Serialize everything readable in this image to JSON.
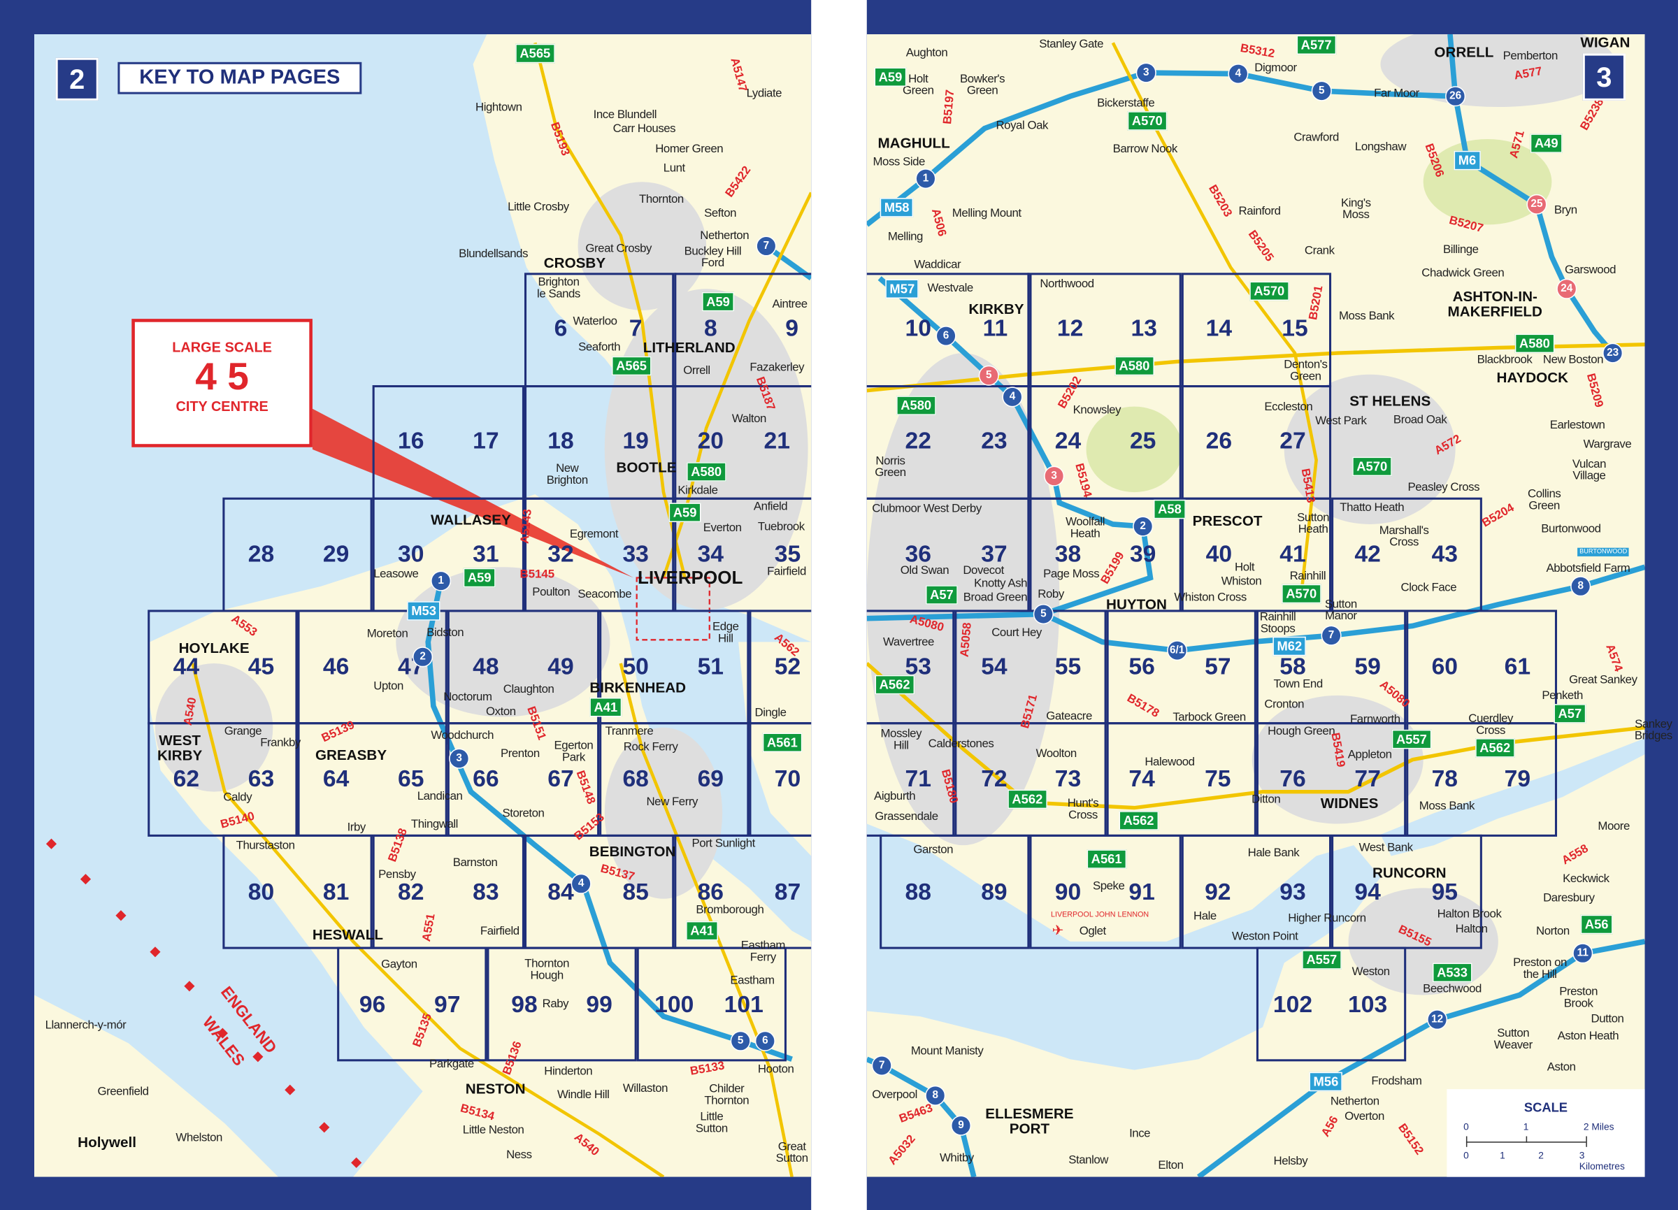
{
  "left_page": {
    "page_number": "2",
    "title": "KEY TO MAP PAGES",
    "large_scale": {
      "line1": "LARGE SCALE",
      "pages": "4 5",
      "line2": "CITY CENTRE"
    },
    "grid_rows": [
      [
        "6",
        "7",
        "8",
        "9"
      ],
      [
        "16",
        "17",
        "18",
        "19",
        "20",
        "21"
      ],
      [
        "28",
        "29",
        "30",
        "31",
        "32",
        "33",
        "34",
        "35"
      ],
      [
        "44",
        "45",
        "46",
        "47",
        "48",
        "49",
        "50",
        "51",
        "52"
      ],
      [
        "62",
        "63",
        "64",
        "65",
        "66",
        "67",
        "68",
        "69",
        "70"
      ],
      [
        "80",
        "81",
        "82",
        "83",
        "84",
        "85",
        "86",
        "87"
      ],
      [
        "96",
        "97",
        "98",
        "99",
        "100",
        "101"
      ]
    ],
    "places": [
      "Hightown",
      "Ince Blundell",
      "Carr Houses",
      "Homer Green",
      "Lunt",
      "Lydiate",
      "Little Crosby",
      "Thornton",
      "Sefton",
      "Netherton",
      "Blundellsands",
      "Great Crosby",
      "Buckley Hill\nFord",
      "CROSBY",
      "Brighton\nle Sands",
      "Waterloo",
      "Seaforth",
      "LITHERLAND",
      "Aintree",
      "Orrell",
      "Fazakerley",
      "Walton",
      "New\nBrighton",
      "BOOTLE",
      "Kirkdale",
      "Anfield",
      "Everton",
      "Tuebrook",
      "WALLASEY",
      "Egremont",
      "Leasowe",
      "LIVERPOOL",
      "Fairfield",
      "Poulton",
      "Seacombe",
      "HOYLAKE",
      "Moreton",
      "Bidston",
      "Upton",
      "Noctorum",
      "Claughton",
      "Oxton",
      "BIRKENHEAD",
      "Edge\nHill",
      "Dingle",
      "Tranmere",
      "Rock Ferry",
      "Egerton\nPark",
      "Prenton",
      "Woodchurch",
      "WEST\nKIRBY",
      "Grange",
      "Frankby",
      "GREASBY",
      "Caldy",
      "Landican",
      "Thingwall",
      "Irby",
      "Storeton",
      "New Ferry",
      "Thurstaston",
      "BEBINGTON",
      "Port Sunlight",
      "Barnston",
      "Pensby",
      "Bromborough",
      "HESWALL",
      "Fairfield",
      "Eastham\nFerry",
      "Gayton",
      "Thornton\nHough",
      "Eastham",
      "Raby",
      "Llannerch-y-mór",
      "Parkgate",
      "Hinderton",
      "Hooton",
      "NESTON",
      "Willaston",
      "Windle Hill",
      "Childer\nThornton",
      "Greenfield",
      "Little Neston",
      "Little\nSutton",
      "Holywell",
      "Whelston",
      "Ness",
      "Great\nSutton"
    ],
    "a_roads": [
      "A565",
      "A59",
      "A565",
      "A580",
      "A59",
      "A59",
      "A41",
      "A561",
      "A41"
    ],
    "motorways": [
      "M53"
    ],
    "b_roads": [
      "B5193",
      "A5147",
      "B5422",
      "B5187",
      "A553",
      "A540",
      "B5139",
      "B5140",
      "B5138",
      "A551",
      "B5145",
      "B5151",
      "B5148",
      "B5153",
      "B5137",
      "B5135",
      "B5136",
      "B5134",
      "B5133",
      "A540",
      "A562",
      "A5143"
    ],
    "junctions": [
      "7",
      "1",
      "2",
      "3",
      "4",
      "5",
      "6"
    ],
    "border_labels": {
      "england": "ENGLAND",
      "wales": "WALES"
    }
  },
  "right_page": {
    "page_number": "3",
    "grid_rows": [
      [
        "10",
        "11",
        "12",
        "13",
        "14",
        "15"
      ],
      [
        "22",
        "23",
        "24",
        "25",
        "26",
        "27"
      ],
      [
        "36",
        "37",
        "38",
        "39",
        "40",
        "41",
        "42",
        "43"
      ],
      [
        "53",
        "54",
        "55",
        "56",
        "57",
        "58",
        "59",
        "60",
        "61"
      ],
      [
        "71",
        "72",
        "73",
        "74",
        "75",
        "76",
        "77",
        "78",
        "79"
      ],
      [
        "88",
        "89",
        "90",
        "91",
        "92",
        "93",
        "94",
        "95"
      ],
      [
        "102",
        "103"
      ]
    ],
    "places": [
      "Aughton",
      "Stanley Gate",
      "Digmoor",
      "ORRELL",
      "Pemberton",
      "WIGAN",
      "Holt\nGreen",
      "Bowker's\nGreen",
      "Bickerstaffe",
      "Royal Oak",
      "Far Moor",
      "MAGHULL",
      "Moss Side",
      "Barrow Nook",
      "Crawford",
      "Longshaw",
      "Melling Mount",
      "Rainford",
      "King's\nMoss",
      "Bryn",
      "Melling",
      "Billinge",
      "Crank",
      "Waddicar",
      "Chadwick Green",
      "Garswood",
      "Westvale",
      "ASHTON-IN-\nMAKERFIELD",
      "KIRKBY",
      "Northwood",
      "Moss Bank",
      "Denton's\nGreen",
      "Blackbrook",
      "New Boston",
      "HAYDOCK",
      "ST HELENS",
      "Knowsley",
      "Eccleston",
      "West Park",
      "Broad Oak",
      "Earlestown",
      "Wargrave",
      "Norris\nGreen",
      "Vulcan\nVillage",
      "Peasley Cross",
      "Collins\nGreen",
      "Thatto Heath",
      "Clubmoor West Derby",
      "Burtonwood",
      "PRESCOT",
      "Sutton\nHeath",
      "Woolfall\nHeath",
      "Marshall's\nCross",
      "Abbotsfield Farm",
      "Holt",
      "Rainhill",
      "Whiston",
      "Whiston Cross",
      "Old Swan",
      "Dovecot",
      "Knotty Ash",
      "Broad Green",
      "Page Moss",
      "Roby",
      "HUYTON",
      "Clock Face",
      "Sutton\nManor",
      "Court Hey",
      "Wavertree",
      "Rainhill\nStoops",
      "Town End",
      "Cronton",
      "Great Sankey",
      "Penketh",
      "Gateacre",
      "Tarbock Green",
      "Farnworth",
      "Cuerdley\nCross",
      "Sankey\nBridges",
      "Mossley\nHill",
      "Calderstones",
      "Hough Green",
      "Woolton",
      "Halewood",
      "Appleton",
      "Aigburth",
      "Hunt's\nCross",
      "Ditton",
      "WIDNES",
      "Moss Bank",
      "Grassendale",
      "Moore",
      "Garston",
      "West Bank",
      "Hale Bank",
      "RUNCORN",
      "Keckwick",
      "Speke",
      "Daresbury",
      "Hale",
      "Higher Runcorn",
      "Halton Brook",
      "Halton",
      "Oglet",
      "Norton",
      "Weston Point",
      "Weston",
      "Preston on\nthe Hill",
      "Beechwood",
      "Preston\nBrook",
      "Sutton\nWeaver",
      "Dutton",
      "Aston Heath",
      "Aston",
      "Mount Manisty",
      "Frodsham",
      "Overpool",
      "Netherton",
      "Overton",
      "ELLESMERE\nPORT",
      "Ince",
      "Helsby",
      "Stanlow",
      "Elton",
      "Whitby"
    ],
    "a_roads": [
      "A59",
      "A577",
      "A570",
      "A49",
      "A570",
      "A580",
      "A580",
      "A580",
      "A570",
      "A58",
      "A57",
      "A570",
      "A562",
      "A57",
      "A557",
      "A562",
      "A562",
      "A562",
      "A561",
      "A56",
      "A557",
      "A533"
    ],
    "motorways": [
      "M58",
      "M57",
      "M6",
      "M62",
      "M56"
    ],
    "b_roads": [
      "B5312",
      "B5197",
      "A506",
      "B5203",
      "B5205",
      "B5201",
      "B5206",
      "A571",
      "B5238",
      "A577",
      "B5207",
      "B5202",
      "B5194",
      "A572",
      "B5209",
      "B5413",
      "B5204",
      "B5199",
      "A5080",
      "A5058",
      "B5171",
      "B5178",
      "B5180",
      "A5080",
      "B5419",
      "B5155",
      "A558",
      "A574",
      "A5032",
      "B5463",
      "A56",
      "B5152"
    ],
    "junctions": [
      "3",
      "4",
      "5",
      "26",
      "1",
      "6",
      "4",
      "2",
      "5",
      "6/1",
      "7",
      "8",
      "23",
      "11",
      "12",
      "7",
      "8",
      "9"
    ],
    "junctions_red": [
      "25",
      "24",
      "5",
      "3"
    ],
    "airport_label": "LIVERPOOL JOHN LENNON",
    "burtonwood_sign": "BURTONWOOD",
    "scale": {
      "title": "SCALE",
      "miles_ticks": [
        "0",
        "1",
        "2 Miles"
      ],
      "km_ticks": [
        "0",
        "1",
        "2",
        "3 Kilometres"
      ]
    }
  },
  "colors": {
    "border": "#263b87",
    "sea": "#cde7f7",
    "land": "#fbf8de",
    "urban": "#dedede",
    "grid": "#1f2f7a",
    "a_road_shield": "#0f9a3c",
    "motorway": "#2a9fd6",
    "highlight_red": "#e0262b"
  }
}
